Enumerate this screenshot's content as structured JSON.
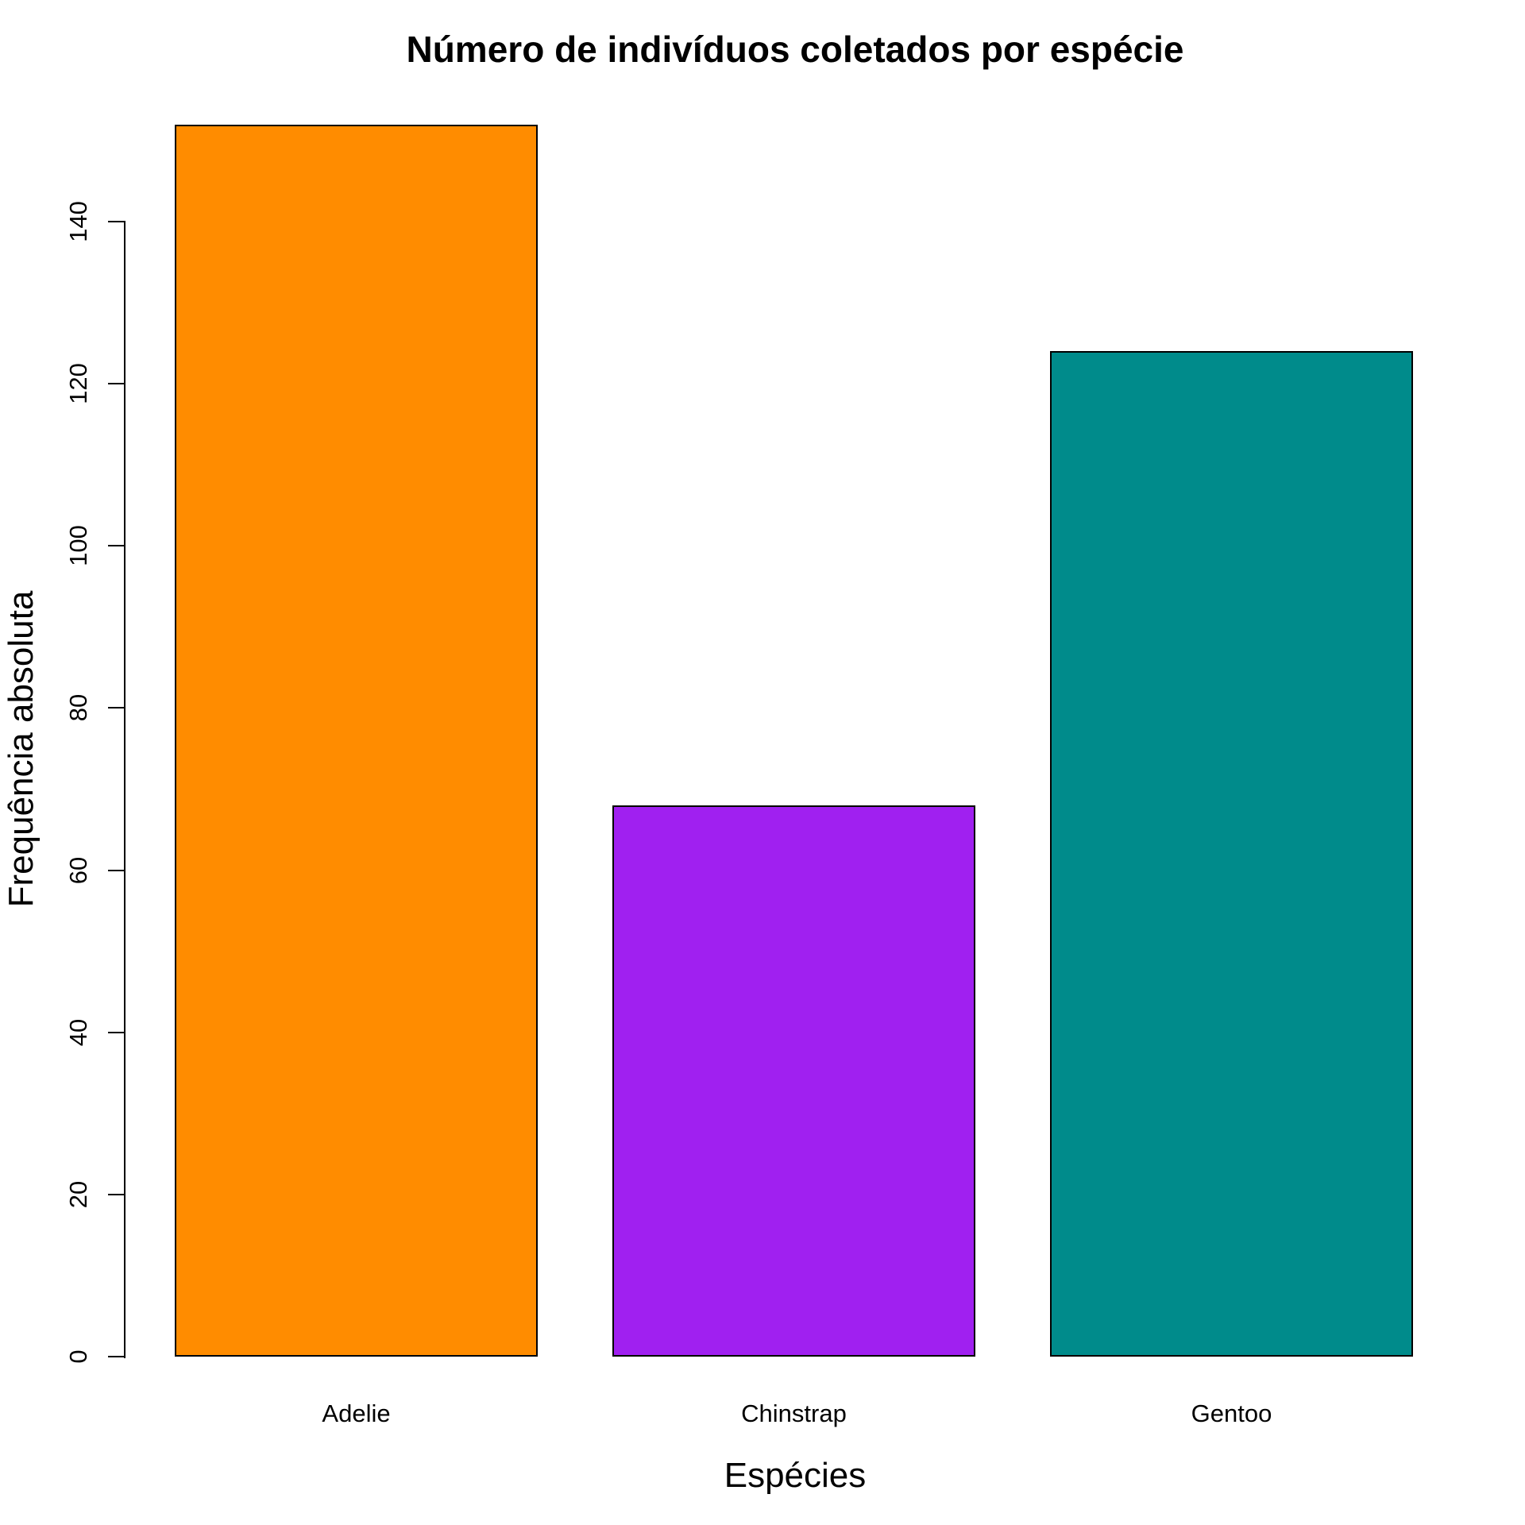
{
  "chart_data": {
    "type": "bar",
    "title": "Número de indivíduos coletados por espécie",
    "xlabel": "Espécies",
    "ylabel": "Frequência absoluta",
    "categories": [
      "Adelie",
      "Chinstrap",
      "Gentoo"
    ],
    "values": [
      152,
      68,
      124
    ],
    "bar_colors": [
      "#FF8C00",
      "#A020F0",
      "#008B8B"
    ],
    "bar_border_color": "#000000",
    "yticks": [
      0,
      20,
      40,
      60,
      80,
      100,
      120,
      140
    ],
    "ylim": [
      0,
      156
    ],
    "grid": false,
    "legend": false,
    "background_color": "#FFFFFF",
    "text_color": "#000000"
  }
}
